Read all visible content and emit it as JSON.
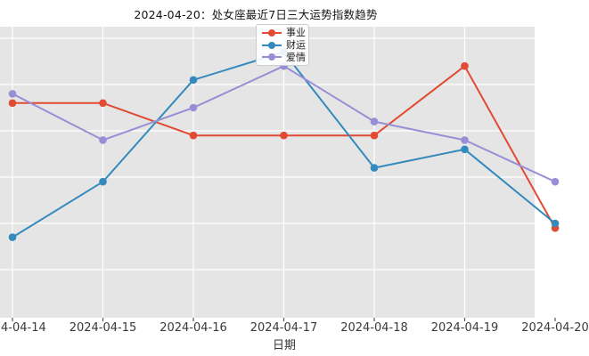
{
  "title": "2024-04-20：处女座最近7日三大运势指数趋势",
  "axis": {
    "x_label": "日期",
    "x_ticks": [
      "2024-04-14",
      "2024-04-15",
      "2024-04-16",
      "2024-04-17",
      "2024-04-18",
      "2024-04-19",
      "2024-04-20"
    ]
  },
  "colors": {
    "figure_bg": "#ffffff",
    "plot_bg": "#e5e5e5",
    "grid": "#ffffff",
    "tick_text": "#3a3a3a",
    "career": "#e24a33",
    "wealth": "#348abd",
    "love": "#988ed5"
  },
  "chart_data": {
    "type": "line",
    "title": "2024-04-20：处女座最近7日三大运势指数趋势",
    "xlabel": "日期",
    "ylabel": "",
    "categories": [
      "2024-04-14",
      "2024-04-15",
      "2024-04-16",
      "2024-04-17",
      "2024-04-18",
      "2024-04-19",
      "2024-04-20"
    ],
    "series": [
      {
        "id": "career",
        "name": "事业",
        "color": "#e24a33",
        "values": [
          86,
          86,
          79,
          79,
          79,
          94,
          59
        ]
      },
      {
        "id": "wealth",
        "name": "财运",
        "color": "#348abd",
        "values": [
          57,
          69,
          91,
          97,
          72,
          76,
          60
        ]
      },
      {
        "id": "love",
        "name": "爱情",
        "color": "#988ed5",
        "values": [
          88,
          78,
          85,
          94,
          82,
          78,
          69
        ]
      }
    ],
    "ylim": [
      40,
      102
    ],
    "grid": true,
    "legend_position": "upper center",
    "note_axis_visibility": "y-axis tick labels cropped out of frame; first and last x labels partially clipped"
  }
}
